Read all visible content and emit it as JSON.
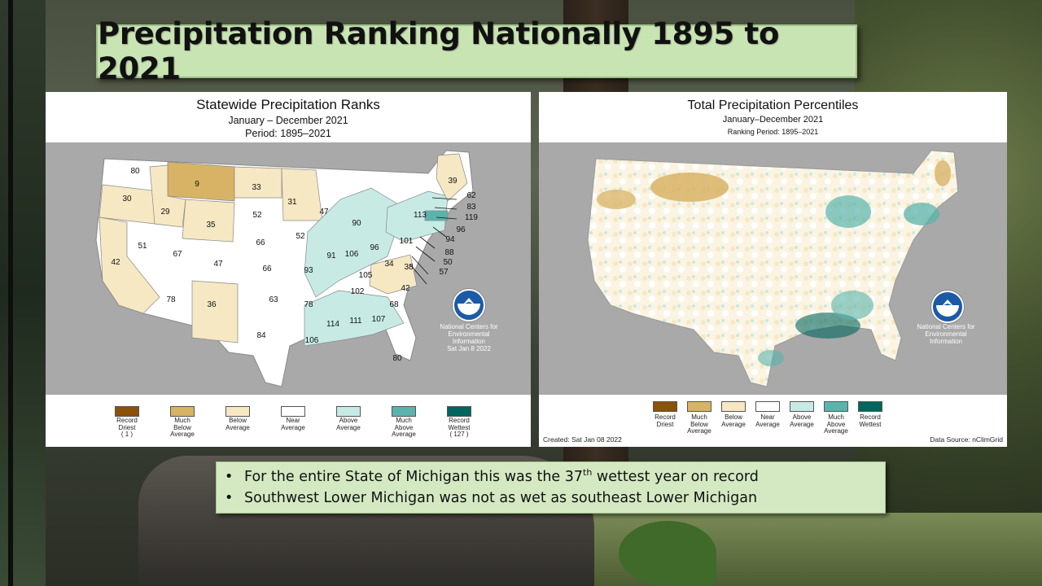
{
  "slide": {
    "title": "Precipitation Ranking Nationally 1895 to 2021"
  },
  "left_map": {
    "title": "Statewide Precipitation Ranks",
    "subtitle1": "January – December 2021",
    "subtitle2": "Period: 1895–2021",
    "credit": "National Centers for\nEnvironmental\nInformation\nSat Jan  8 2022",
    "states": [
      {
        "state": "WA",
        "rank": "80"
      },
      {
        "state": "OR",
        "rank": "30"
      },
      {
        "state": "CA",
        "rank": "42"
      },
      {
        "state": "ID",
        "rank": "29"
      },
      {
        "state": "NV",
        "rank": "51"
      },
      {
        "state": "MT",
        "rank": "9"
      },
      {
        "state": "WY",
        "rank": "35"
      },
      {
        "state": "UT",
        "rank": "67"
      },
      {
        "state": "AZ",
        "rank": "78"
      },
      {
        "state": "CO",
        "rank": "47"
      },
      {
        "state": "NM",
        "rank": "36"
      },
      {
        "state": "ND",
        "rank": "33"
      },
      {
        "state": "SD",
        "rank": "52"
      },
      {
        "state": "NE",
        "rank": "66"
      },
      {
        "state": "KS",
        "rank": "66"
      },
      {
        "state": "OK",
        "rank": "63"
      },
      {
        "state": "TX",
        "rank": "84"
      },
      {
        "state": "MN",
        "rank": "31"
      },
      {
        "state": "IA",
        "rank": "52"
      },
      {
        "state": "MO",
        "rank": "93"
      },
      {
        "state": "AR",
        "rank": "78"
      },
      {
        "state": "LA",
        "rank": "106"
      },
      {
        "state": "WI",
        "rank": "47"
      },
      {
        "state": "IL",
        "rank": "91"
      },
      {
        "state": "MI",
        "rank": "90"
      },
      {
        "state": "IN",
        "rank": "106"
      },
      {
        "state": "OH",
        "rank": "96"
      },
      {
        "state": "KY",
        "rank": "105"
      },
      {
        "state": "TN",
        "rank": "102"
      },
      {
        "state": "MS",
        "rank": "114"
      },
      {
        "state": "AL",
        "rank": "111"
      },
      {
        "state": "GA",
        "rank": "107"
      },
      {
        "state": "FL",
        "rank": "80"
      },
      {
        "state": "SC",
        "rank": "68"
      },
      {
        "state": "NC",
        "rank": "42"
      },
      {
        "state": "VA",
        "rank": "38"
      },
      {
        "state": "WV",
        "rank": "34"
      },
      {
        "state": "PA",
        "rank": "101"
      },
      {
        "state": "NY",
        "rank": "113"
      },
      {
        "state": "ME",
        "rank": "39"
      },
      {
        "state": "NH",
        "rank": "62"
      },
      {
        "state": "VT",
        "rank": "83"
      },
      {
        "state": "MA",
        "rank": "119"
      },
      {
        "state": "CT",
        "rank": "96"
      },
      {
        "state": "NJ",
        "rank": "94"
      },
      {
        "state": "DE",
        "rank": "88"
      },
      {
        "state": "MD",
        "rank": "50"
      },
      {
        "state": "DC",
        "rank": "57"
      }
    ],
    "legend": [
      {
        "label": "Record\nDriest\n( 1 )",
        "color": "#8c510a"
      },
      {
        "label": "Much\nBelow\nAverage",
        "color": "#d8b365"
      },
      {
        "label": "Below\nAverage",
        "color": "#f6e8c3"
      },
      {
        "label": "Near\nAverage",
        "color": "#ffffff"
      },
      {
        "label": "Above\nAverage",
        "color": "#c7eae5"
      },
      {
        "label": "Much\nAbove\nAverage",
        "color": "#5ab4ac"
      },
      {
        "label": "Record\nWettest\n( 127 )",
        "color": "#01665e"
      }
    ]
  },
  "right_map": {
    "title": "Total Precipitation Percentiles",
    "subtitle1": "January–December 2021",
    "subtitle2": "Ranking Period: 1895–2021",
    "credit": "National Centers for\nEnvironmental\nInformation",
    "created": "Created: Sat Jan 08 2022",
    "source": "Data Source: nClimGrid",
    "legend": [
      {
        "label": "Record\nDriest",
        "color": "#8c510a"
      },
      {
        "label": "Much\nBelow\nAverage",
        "color": "#d8b365"
      },
      {
        "label": "Below\nAverage",
        "color": "#f6e8c3"
      },
      {
        "label": "Near\nAverage",
        "color": "#ffffff"
      },
      {
        "label": "Above\nAverage",
        "color": "#c7eae5"
      },
      {
        "label": "Much\nAbove\nAverage",
        "color": "#5ab4ac"
      },
      {
        "label": "Record\nWettest",
        "color": "#01665e"
      }
    ]
  },
  "notes": {
    "line1_pre": "For the entire State of Michigan this was the 37",
    "line1_sup": "th",
    "line1_post": " wettest year on record",
    "line2": "Southwest Lower Michigan was not as wet as southeast Lower Michigan"
  },
  "logo_text": "NOAA"
}
